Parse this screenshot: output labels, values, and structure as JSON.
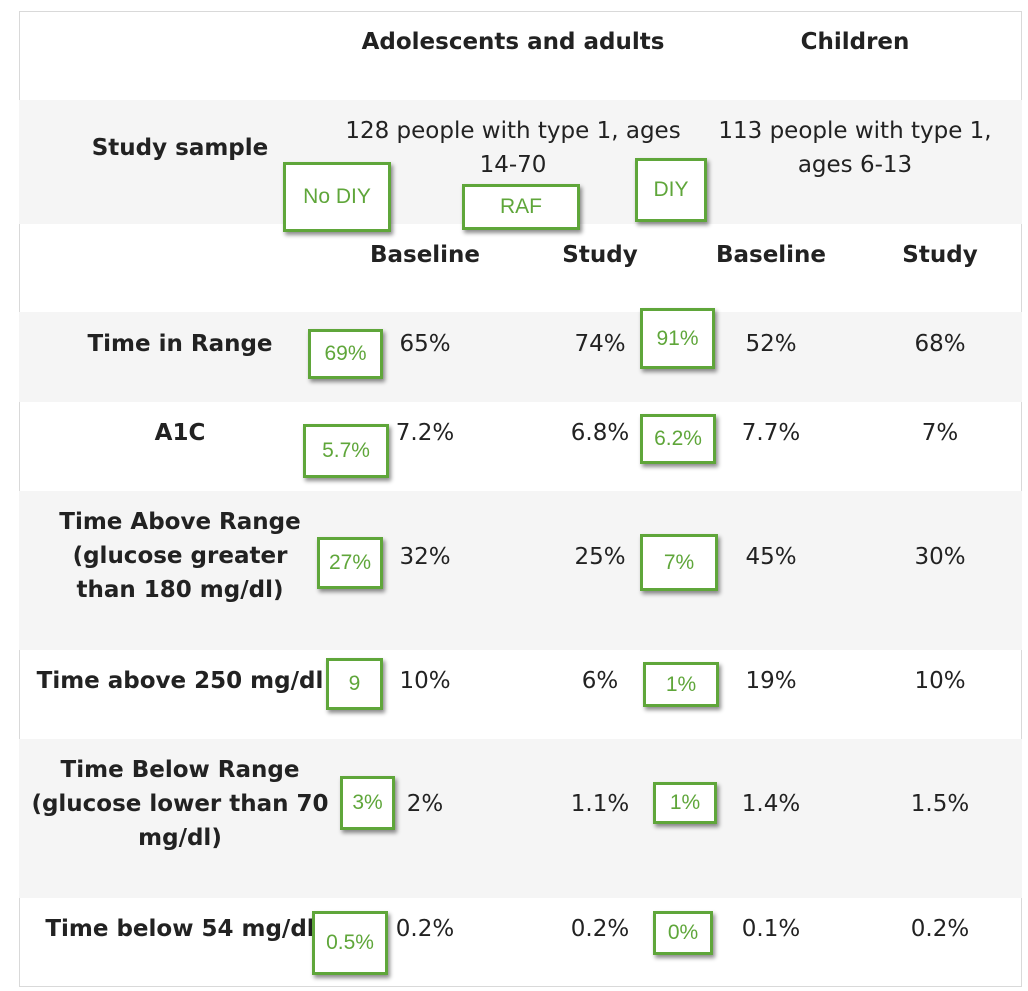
{
  "header": {
    "group1": "Adolescents and adults",
    "group2": "Children"
  },
  "sample": {
    "label": "Study sample",
    "group1_line1": "128 people with type 1, ages",
    "group1_line2": "14-70",
    "group2_line1": "113 people with type 1,",
    "group2_line2": "ages 6-13"
  },
  "subheader": {
    "baseline1": "Baseline",
    "study1": "Study",
    "baseline2": "Baseline",
    "study2": "Study"
  },
  "rows": [
    {
      "label_lines": [
        "Time in Range"
      ],
      "values": [
        "65%",
        "74%",
        "52%",
        "68%"
      ]
    },
    {
      "label_lines": [
        "A1C"
      ],
      "values": [
        "7.2%",
        "6.8%",
        "7.7%",
        "7%"
      ]
    },
    {
      "label_lines": [
        "Time Above Range",
        "(glucose greater",
        "than 180 mg/dl)"
      ],
      "values": [
        "32%",
        "25%",
        "45%",
        "30%"
      ]
    },
    {
      "label_lines": [
        "Time above 250 mg/dl"
      ],
      "values": [
        "10%",
        "6%",
        "19%",
        "10%"
      ]
    },
    {
      "label_lines": [
        "Time Below Range",
        "(glucose lower than 70",
        "mg/dl)"
      ],
      "values": [
        "2%",
        "1.1%",
        "1.4%",
        "1.5%"
      ]
    },
    {
      "label_lines": [
        "Time below 54 mg/dl"
      ],
      "values": [
        "0.2%",
        "0.2%",
        "0.1%",
        "0.2%"
      ]
    }
  ],
  "annotations": {
    "no_diy": "No DIY",
    "raf": "RAF",
    "diy": "DIY",
    "no_diy_values": [
      "69%",
      "5.7%",
      "27%",
      "9",
      "3%",
      "0.5%"
    ],
    "diy_values": [
      "91%",
      "6.2%",
      "7%",
      "1%",
      "1%",
      "0%"
    ]
  },
  "colors": {
    "annotation_green": "#5fa63a",
    "band_gray": "#f5f5f5"
  }
}
